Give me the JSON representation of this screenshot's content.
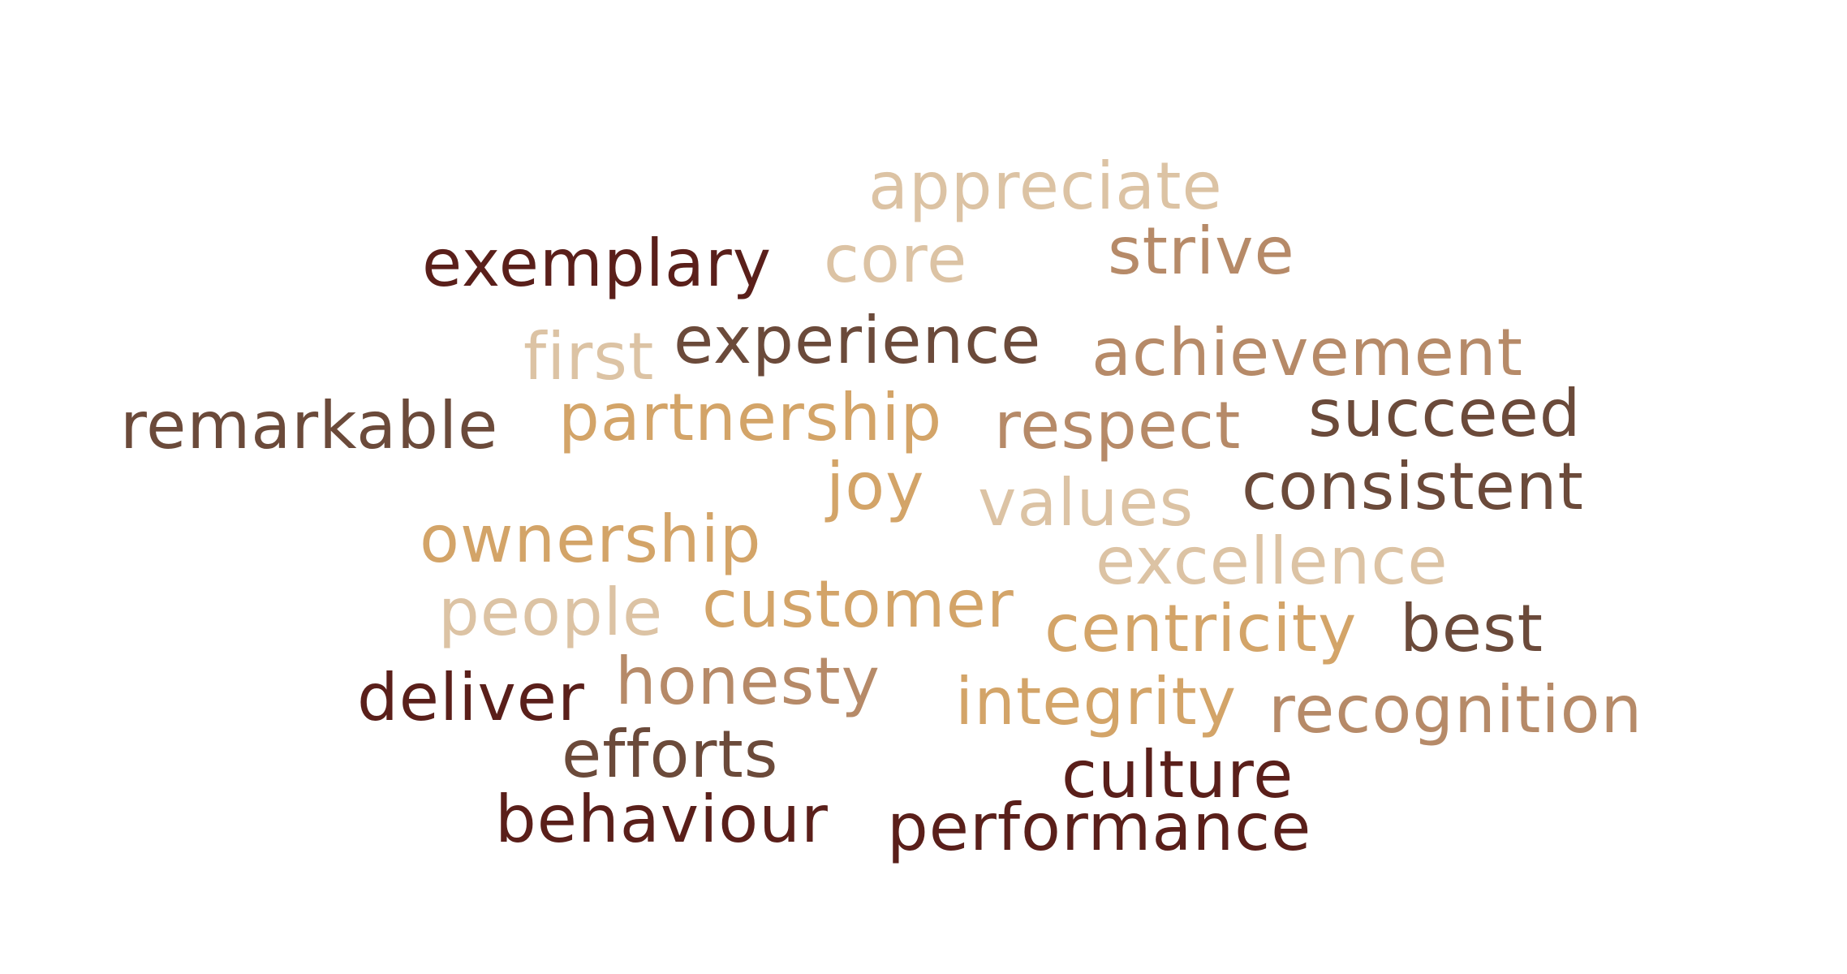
{
  "palette": {
    "dark_maroon": "#5a1f1a",
    "dark_brown": "#6b4a3a",
    "mid_brown": "#b68a68",
    "gold": "#d3a468",
    "light_tan": "#dcc3a4"
  },
  "words": [
    {
      "text": "appreciate",
      "color": "#dcc3a4"
    },
    {
      "text": "core",
      "color": "#dcc3a4"
    },
    {
      "text": "strive",
      "color": "#b68a68"
    },
    {
      "text": "exemplary",
      "color": "#5a1f1a"
    },
    {
      "text": "first",
      "color": "#dcc3a4"
    },
    {
      "text": "experience",
      "color": "#6b4a3a"
    },
    {
      "text": "achievement",
      "color": "#b68a68"
    },
    {
      "text": "remarkable",
      "color": "#6b4a3a"
    },
    {
      "text": "partnership",
      "color": "#d3a468"
    },
    {
      "text": "respect",
      "color": "#b68a68"
    },
    {
      "text": "succeed",
      "color": "#6b4a3a"
    },
    {
      "text": "joy",
      "color": "#d3a468"
    },
    {
      "text": "values",
      "color": "#dcc3a4"
    },
    {
      "text": "consistent",
      "color": "#6b4a3a"
    },
    {
      "text": "ownership",
      "color": "#d3a468"
    },
    {
      "text": "excellence",
      "color": "#dcc3a4"
    },
    {
      "text": "people",
      "color": "#dcc3a4"
    },
    {
      "text": "customer",
      "color": "#d3a468"
    },
    {
      "text": "centricity",
      "color": "#d3a468"
    },
    {
      "text": "best",
      "color": "#6b4a3a"
    },
    {
      "text": "deliver",
      "color": "#5a1f1a"
    },
    {
      "text": "honesty",
      "color": "#b68a68"
    },
    {
      "text": "integrity",
      "color": "#d3a468"
    },
    {
      "text": "recognition",
      "color": "#b68a68"
    },
    {
      "text": "efforts",
      "color": "#6b4a3a"
    },
    {
      "text": "culture",
      "color": "#5a1f1a"
    },
    {
      "text": "behaviour",
      "color": "#5a1f1a"
    },
    {
      "text": "performance",
      "color": "#5a1f1a"
    }
  ]
}
